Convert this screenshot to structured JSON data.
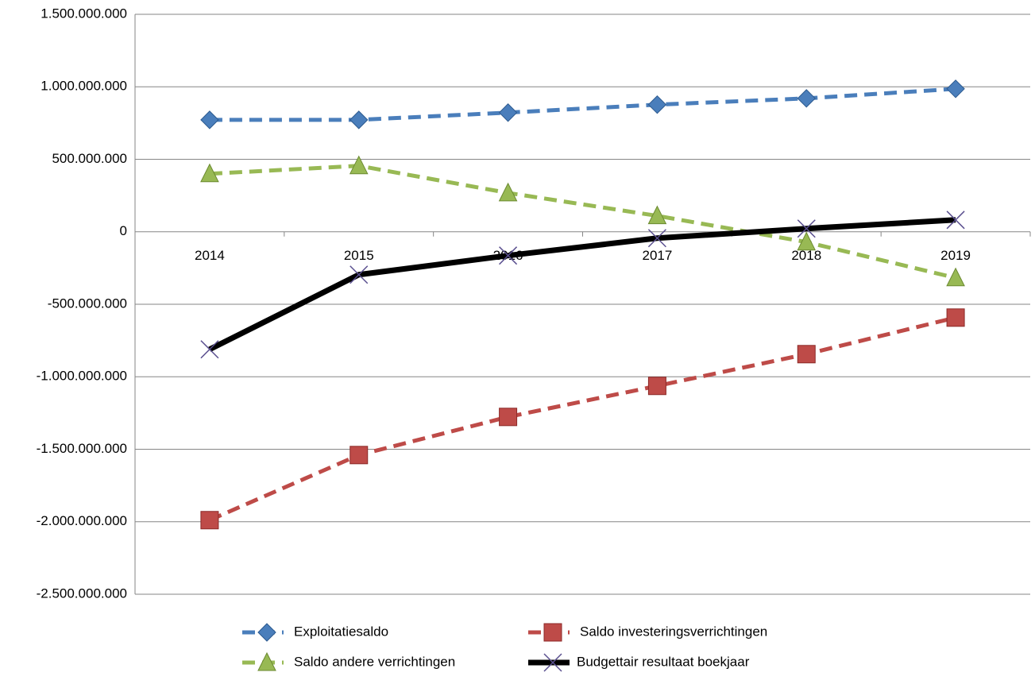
{
  "chart_data": {
    "type": "line",
    "categories": [
      "2014",
      "2015",
      "2016",
      "2017",
      "2018",
      "2019"
    ],
    "series": [
      {
        "name": "Exploitatiesaldo",
        "color": "#4a7ebb",
        "marker": "diamond",
        "dashed": true,
        "values": [
          772000000,
          772000000,
          822000000,
          877000000,
          920000000,
          986000000
        ]
      },
      {
        "name": "Saldo investeringsverrichtingen",
        "color": "#be4b48",
        "marker": "square",
        "dashed": true,
        "values": [
          -1989000000,
          -1540000000,
          -1277000000,
          -1063000000,
          -844000000,
          -592000000
        ]
      },
      {
        "name": "Saldo andere verrichtingen",
        "color": "#98b954",
        "marker": "triangle",
        "dashed": true,
        "values": [
          400000000,
          455000000,
          268000000,
          110000000,
          -71000000,
          -318000000
        ]
      },
      {
        "name": "Budgettair resultaat boekjaar",
        "color": "#000000",
        "marker": "x",
        "dashed": false,
        "values": [
          -811000000,
          -296000000,
          -164000000,
          -44000000,
          22000000,
          82000000
        ]
      }
    ],
    "ylim": [
      -2500000000,
      1500000000
    ],
    "yticks": [
      {
        "value": -2500000000,
        "label": "-2.500.000.000"
      },
      {
        "value": -2000000000,
        "label": "-2.000.000.000"
      },
      {
        "value": -1500000000,
        "label": "-1.500.000.000"
      },
      {
        "value": -1000000000,
        "label": "-1.000.000.000"
      },
      {
        "value": -500000000,
        "label": "-500.000.000"
      },
      0,
      {
        "value": 500000000,
        "label": "500.000.000"
      },
      {
        "value": 1000000000,
        "label": "1.000.000.000"
      },
      {
        "value": 1500000000,
        "label": "1.500.000.000"
      }
    ],
    "grid": true
  }
}
